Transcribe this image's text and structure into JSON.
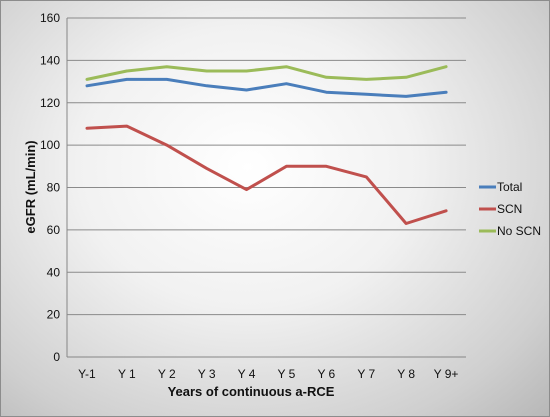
{
  "chart_data": {
    "type": "line",
    "categories": [
      "Y-1",
      "Y 1",
      "Y 2",
      "Y 3",
      "Y 4",
      "Y 5",
      "Y 6",
      "Y 7",
      "Y 8",
      "Y 9+"
    ],
    "series": [
      {
        "name": "Total",
        "color": "#4a7ebb",
        "values": [
          128,
          131,
          131,
          128,
          126,
          129,
          125,
          124,
          123,
          125
        ]
      },
      {
        "name": "SCN",
        "color": "#c0504d",
        "values": [
          108,
          109,
          100,
          89,
          79,
          90,
          90,
          85,
          63,
          69
        ]
      },
      {
        "name": "No SCN",
        "color": "#9bbb59",
        "values": [
          131,
          135,
          137,
          135,
          135,
          137,
          132,
          131,
          132,
          137
        ]
      }
    ],
    "yticks": [
      0,
      20,
      40,
      60,
      80,
      100,
      120,
      140,
      160
    ],
    "ylim": [
      0,
      160
    ],
    "xlabel": "Years of continuous a-RCE",
    "ylabel": "eGFR (mL/min)",
    "grid": true,
    "legend": "right"
  }
}
